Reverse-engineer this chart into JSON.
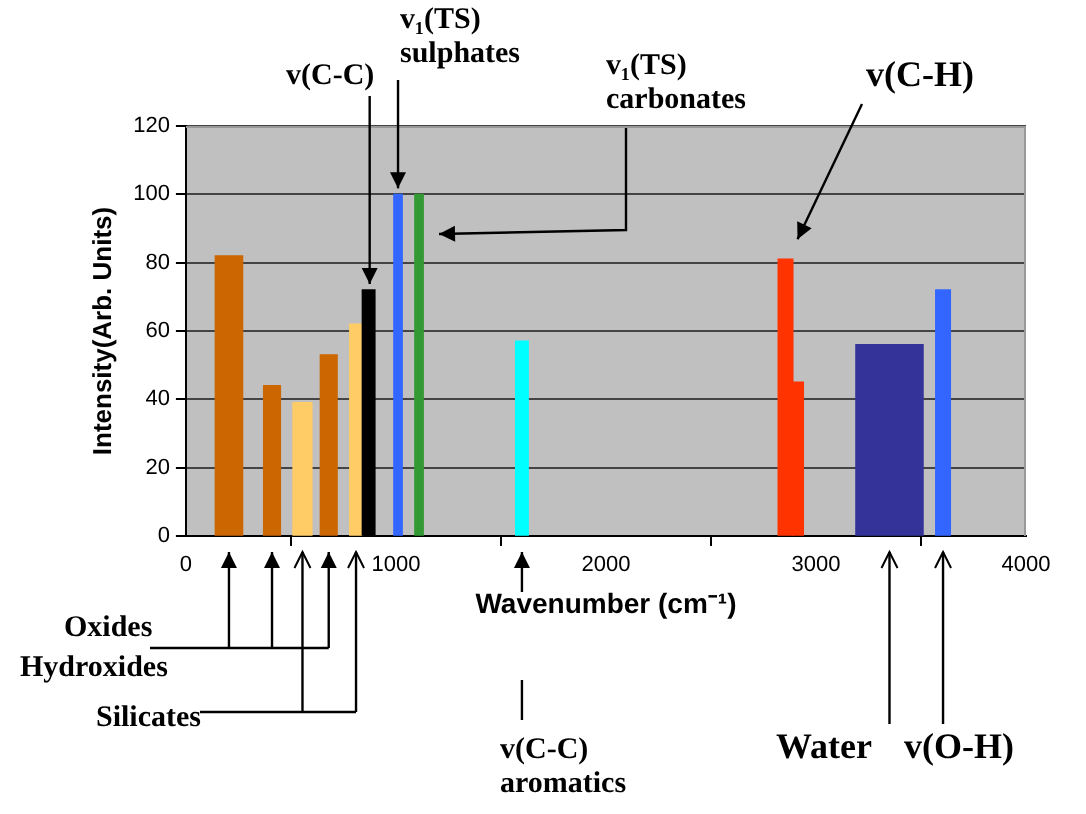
{
  "chart_data": {
    "type": "histogram",
    "xlabel": "Wavenumber (cm⁻¹)",
    "ylabel": "Intensity(Arb. Units)",
    "bins": [
      140,
      270,
      370,
      450,
      510,
      600,
      640,
      720,
      780,
      840,
      900,
      990,
      1030,
      1090,
      1130,
      1570,
      1630,
      2820,
      2890,
      2940,
      3190,
      3510,
      3570,
      3640
    ],
    "values": [
      82,
      null,
      44,
      null,
      39,
      null,
      53,
      null,
      62,
      72,
      null,
      100,
      null,
      100,
      null,
      57,
      null,
      81,
      45,
      null,
      56,
      null,
      72
    ],
    "colors": [
      "#cc6600",
      null,
      "#cc6600",
      null,
      "#ffcc66",
      null,
      "#cc6600",
      null,
      "#ffcc66",
      "#000000",
      null,
      "#3366ff",
      null,
      "#339933",
      null,
      "#00ffff",
      null,
      "#ff3300",
      "#ff3300",
      null,
      "#333399",
      null,
      "#3366ff"
    ],
    "xlim": [
      0,
      4000
    ],
    "xticks": [
      0,
      1000,
      2000,
      3000,
      4000
    ],
    "ylim": [
      0,
      120
    ],
    "yticks": [
      0,
      20,
      40,
      60,
      80,
      100,
      120
    ],
    "grid": "y",
    "legend": false,
    "annotations": [
      {
        "text": "v(C-C)",
        "x": 875,
        "y": 72
      },
      {
        "text": "v₁(TS) sulphates",
        "x": 1010,
        "y": 100
      },
      "v₁(TS) carbonates",
      "v(C-H)",
      "Oxides",
      "Hydroxides",
      "Silicates",
      "v(C-C) aromatics",
      "Water",
      "v(O-H)"
    ]
  }
}
